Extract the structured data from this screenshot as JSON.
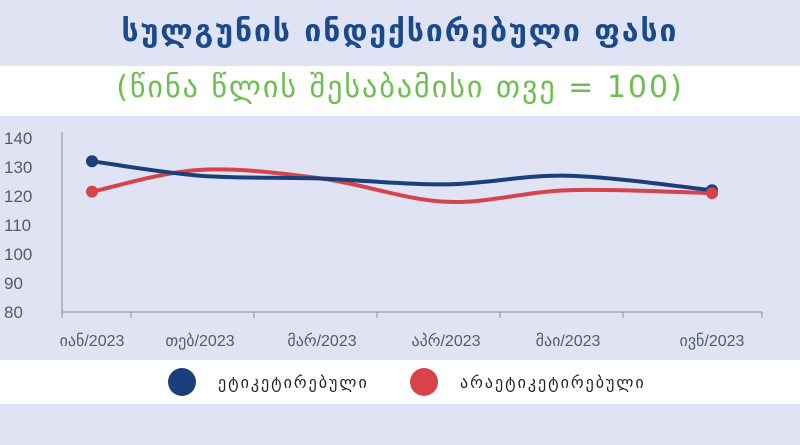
{
  "header": {
    "title": "სულგუნის ინდექსირებული ფასი",
    "subtitle": "(წინა წლის შესაბამისი თვე = 100)"
  },
  "colors": {
    "series1": "#1b3f7a",
    "series2": "#d6434b",
    "panel": "#dfe3f3",
    "title": "#1b4a8c",
    "subtitle": "#6cbf4e"
  },
  "chart_data": {
    "type": "line",
    "title": "სულგუნის ინდექსირებული ფასი",
    "subtitle": "(წინა წლის შესაბამისი თვე = 100)",
    "categories": [
      "იან/2023",
      "თებ/2023",
      "მარ/2023",
      "აპრ/2023",
      "მაი/2023",
      "ივნ/2023"
    ],
    "series": [
      {
        "name": "ეტიკეტირებული",
        "values": [
          132,
          127,
          126,
          124,
          127,
          122
        ]
      },
      {
        "name": "არაეტიკეტირებული",
        "values": [
          121.5,
          129,
          126,
          118,
          122,
          121
        ]
      }
    ],
    "ylim": [
      80,
      140
    ],
    "yticks": [
      140,
      130,
      120,
      110,
      100,
      90,
      80
    ],
    "grid": false,
    "legend": "bottom",
    "xlabel": "",
    "ylabel": ""
  }
}
